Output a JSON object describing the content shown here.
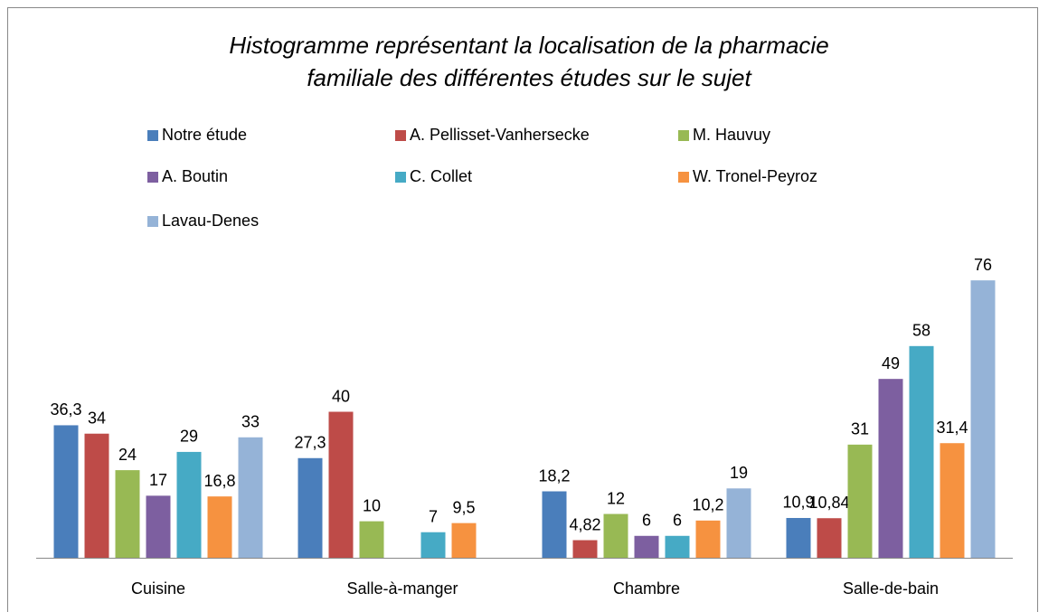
{
  "chart_data": {
    "type": "bar",
    "title": [
      "Histogramme représentant la localisation de la pharmacie",
      "familiale des différentes études sur le sujet"
    ],
    "categories": [
      "Cuisine",
      "Salle-à-manger",
      "Chambre",
      "Salle-de-bain"
    ],
    "ylim": [
      0,
      80
    ],
    "legend": "top",
    "series": [
      {
        "name": "Notre étude",
        "color": "#4a7ebb",
        "values": [
          36.3,
          27.3,
          18.2,
          10.9
        ],
        "value_labels": [
          "36,3",
          "27,3",
          "18,2",
          "10,9"
        ]
      },
      {
        "name": "A. Pellisset-Vanhersecke",
        "color": "#be4b48",
        "values": [
          34,
          40,
          4.82,
          10.84
        ],
        "value_labels": [
          "34",
          "40",
          "4,82",
          "10,84"
        ]
      },
      {
        "name": "M. Hauvuy",
        "color": "#98b954",
        "values": [
          24,
          10,
          12,
          31
        ],
        "value_labels": [
          "24",
          "10",
          "12",
          "31"
        ]
      },
      {
        "name": "A. Boutin",
        "color": "#7d5fa0",
        "values": [
          17,
          null,
          6,
          49
        ],
        "value_labels": [
          "17",
          null,
          "6",
          "49"
        ]
      },
      {
        "name": "C. Collet",
        "color": "#46aac5",
        "values": [
          29,
          7,
          6,
          58
        ],
        "value_labels": [
          "29",
          "7",
          "6",
          "58"
        ]
      },
      {
        "name": "W. Tronel-Peyroz",
        "color": "#f69240",
        "values": [
          16.8,
          9.5,
          10.2,
          31.4
        ],
        "value_labels": [
          "16,8",
          "9,5",
          "10,2",
          "31,4"
        ]
      },
      {
        "name": "Lavau-Denes",
        "color": "#95b3d7",
        "values": [
          33,
          null,
          19,
          76
        ],
        "value_labels": [
          "33",
          null,
          "19",
          "76"
        ]
      }
    ]
  }
}
